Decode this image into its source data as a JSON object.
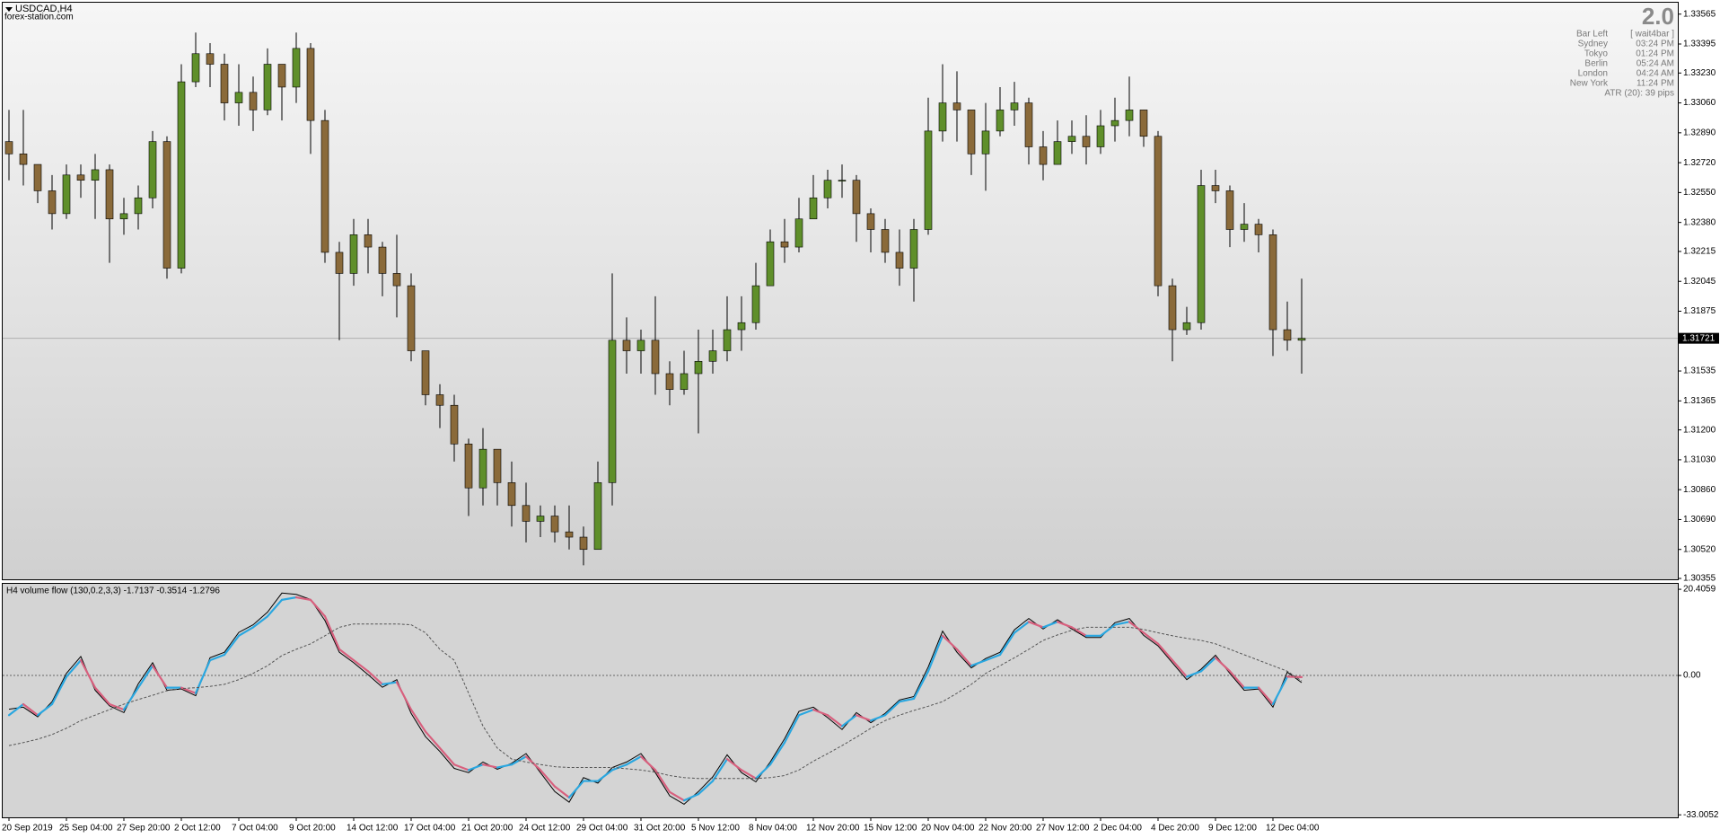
{
  "chart_data": [
    {
      "type": "candlestick",
      "title": "USDCAD,H4",
      "subtitle": "forex-station.com",
      "categories": [
        "20 Sep 2019",
        null,
        null,
        null,
        "25 Sep 04:00",
        null,
        null,
        null,
        "27 Sep 20:00",
        null,
        null,
        null,
        "2 Oct 12:00",
        null,
        null,
        null,
        "7 Oct 04:00",
        null,
        null,
        null,
        "9 Oct 20:00",
        null,
        null,
        null,
        "14 Oct 12:00",
        null,
        null,
        null,
        "17 Oct 04:00",
        null,
        null,
        null,
        "21 Oct 20:00",
        null,
        null,
        null,
        "24 Oct 12:00",
        null,
        null,
        null,
        "29 Oct 04:00",
        null,
        null,
        null,
        "31 Oct 20:00",
        null,
        null,
        null,
        "5 Nov 12:00",
        null,
        null,
        null,
        "8 Nov 04:00",
        null,
        null,
        null,
        "12 Nov 20:00",
        null,
        null,
        null,
        "15 Nov 12:00",
        null,
        null,
        null,
        "20 Nov 04:00",
        null,
        null,
        null,
        "22 Nov 20:00",
        null,
        null,
        null,
        "27 Nov 12:00",
        null,
        null,
        null,
        "2 Dec 04:00",
        null,
        null,
        null,
        "4 Dec 20:00",
        null,
        null,
        null,
        "9 Dec 12:00",
        null,
        null,
        null,
        "12 Dec 04:00",
        null,
        null
      ],
      "open": [
        1.3284,
        1.3277,
        1.3271,
        1.3256,
        1.3243,
        1.3265,
        1.3262,
        1.3268,
        1.324,
        1.3243,
        1.3252,
        1.3284,
        1.3212,
        1.3318,
        1.3334,
        1.3328,
        1.3306,
        1.3312,
        1.3302,
        1.3328,
        1.3315,
        1.3337,
        1.3296,
        1.3221,
        1.3209,
        1.3231,
        1.3224,
        1.3209,
        1.3202,
        1.3165,
        1.314,
        1.3134,
        1.3112,
        1.3087,
        1.3109,
        1.309,
        1.3077,
        1.3068,
        1.3071,
        1.3062,
        1.3059,
        1.3052,
        1.309,
        1.3171,
        1.3165,
        1.3171,
        1.3152,
        1.3143,
        1.3152,
        1.3159,
        1.3165,
        1.3177,
        1.3181,
        1.3202,
        1.3227,
        1.3224,
        1.324,
        1.3252,
        1.3262,
        1.3262,
        1.3243,
        1.3234,
        1.3221,
        1.3212,
        1.3234,
        1.329,
        1.3306,
        1.3302,
        1.3277,
        1.329,
        1.3302,
        1.3306,
        1.3281,
        1.3271,
        1.3284,
        1.3287,
        1.3281,
        1.3293,
        1.3296,
        1.3302,
        1.3287,
        1.3202,
        1.3177,
        1.3181,
        1.3259,
        1.3256,
        1.3234,
        1.3237,
        1.3231,
        1.3177,
        1.3171
      ],
      "high": [
        1.3302,
        1.3302,
        1.3271,
        1.3265,
        1.3271,
        1.3271,
        1.3277,
        1.3271,
        1.3252,
        1.3259,
        1.329,
        1.3287,
        1.3328,
        1.3346,
        1.334,
        1.3334,
        1.3328,
        1.3321,
        1.3337,
        1.3328,
        1.3346,
        1.334,
        1.3302,
        1.3227,
        1.324,
        1.324,
        1.3227,
        1.3231,
        1.3209,
        1.3165,
        1.3146,
        1.314,
        1.3115,
        1.3121,
        1.3109,
        1.3102,
        1.309,
        1.3077,
        1.3077,
        1.3077,
        1.3065,
        1.3102,
        1.3209,
        1.3184,
        1.3177,
        1.3196,
        1.3159,
        1.3165,
        1.3177,
        1.3177,
        1.3196,
        1.3196,
        1.3215,
        1.3234,
        1.324,
        1.3252,
        1.3265,
        1.3268,
        1.3271,
        1.3265,
        1.3246,
        1.324,
        1.3234,
        1.324,
        1.3309,
        1.3328,
        1.3324,
        1.3302,
        1.3306,
        1.3315,
        1.3318,
        1.3309,
        1.329,
        1.3296,
        1.3296,
        1.3299,
        1.3302,
        1.3309,
        1.3321,
        1.3302,
        1.329,
        1.3206,
        1.319,
        1.3268,
        1.3268,
        1.3259,
        1.3249,
        1.324,
        1.3234,
        1.3193,
        1.3206
      ],
      "low": [
        1.3262,
        1.3259,
        1.3249,
        1.3234,
        1.324,
        1.3252,
        1.324,
        1.3215,
        1.3231,
        1.3234,
        1.3246,
        1.3206,
        1.3209,
        1.3315,
        1.3315,
        1.3296,
        1.3293,
        1.329,
        1.3299,
        1.3296,
        1.3306,
        1.3277,
        1.3215,
        1.3171,
        1.3202,
        1.3209,
        1.3196,
        1.3184,
        1.3159,
        1.3134,
        1.3121,
        1.3102,
        1.3071,
        1.3077,
        1.3077,
        1.3065,
        1.3056,
        1.3059,
        1.3056,
        1.3052,
        1.3043,
        1.3052,
        1.3077,
        1.3152,
        1.3152,
        1.314,
        1.3134,
        1.314,
        1.3118,
        1.3152,
        1.3159,
        1.3165,
        1.3177,
        1.3202,
        1.3215,
        1.3221,
        1.324,
        1.3246,
        1.3252,
        1.3227,
        1.3221,
        1.3215,
        1.3202,
        1.3193,
        1.3231,
        1.3284,
        1.3284,
        1.3265,
        1.3256,
        1.3287,
        1.3293,
        1.3271,
        1.3262,
        1.3271,
        1.3277,
        1.3271,
        1.3277,
        1.3284,
        1.3287,
        1.3281,
        1.3196,
        1.3159,
        1.3174,
        1.3177,
        1.3249,
        1.3224,
        1.3227,
        1.3221,
        1.3162,
        1.3165,
        1.3152
      ],
      "close": [
        1.3277,
        1.3271,
        1.3256,
        1.3243,
        1.3265,
        1.3262,
        1.3268,
        1.324,
        1.3243,
        1.3252,
        1.3284,
        1.3212,
        1.3318,
        1.3334,
        1.3328,
        1.3306,
        1.3312,
        1.3302,
        1.3328,
        1.3315,
        1.3337,
        1.3296,
        1.3221,
        1.3209,
        1.3231,
        1.3224,
        1.3209,
        1.3202,
        1.3165,
        1.314,
        1.3134,
        1.3112,
        1.3087,
        1.3109,
        1.309,
        1.3077,
        1.3068,
        1.3071,
        1.3062,
        1.3059,
        1.3052,
        1.309,
        1.3171,
        1.3165,
        1.3171,
        1.3152,
        1.3143,
        1.3152,
        1.3159,
        1.3165,
        1.3177,
        1.3181,
        1.3202,
        1.3227,
        1.3224,
        1.324,
        1.3252,
        1.3262,
        1.3262,
        1.3243,
        1.3234,
        1.3221,
        1.3212,
        1.3234,
        1.329,
        1.3306,
        1.3302,
        1.3277,
        1.329,
        1.3302,
        1.3306,
        1.3281,
        1.3271,
        1.3284,
        1.3287,
        1.3281,
        1.3293,
        1.3296,
        1.3302,
        1.3287,
        1.3202,
        1.3177,
        1.3181,
        1.3259,
        1.3256,
        1.3234,
        1.3237,
        1.3231,
        1.3177,
        1.3171,
        1.31721
      ],
      "up_color": "#5f8f2a",
      "down_color": "#8a6a3a",
      "wick_color": "#000000",
      "last_price": 1.31721,
      "ylim": [
        1.3035,
        1.3363
      ],
      "yticks": [
        1.33565,
        1.33395,
        {
          "value": 1.3323,
          "label": "1.33230"
        },
        {
          "value": 1.3306,
          "label": "1.33060"
        },
        {
          "value": 1.3289,
          "label": "1.32890"
        },
        {
          "value": 1.3272,
          "label": "1.32720"
        },
        {
          "value": 1.3255,
          "label": "1.32550"
        },
        {
          "value": 1.3238,
          "label": "1.32380"
        },
        1.32215,
        1.32045,
        1.31875,
        1.31535,
        1.31365,
        {
          "value": 1.312,
          "label": "1.31200"
        },
        {
          "value": 1.3103,
          "label": "1.31030"
        },
        {
          "value": 1.3086,
          "label": "1.30860"
        },
        {
          "value": 1.3069,
          "label": "1.30690"
        },
        {
          "value": 1.3052,
          "label": "1.30520"
        },
        1.30355
      ],
      "grid": false
    },
    {
      "type": "line",
      "title": "H4 volume flow (130,0.2,3,3) -1.7137 -0.3514 -1.2796",
      "series": [
        {
          "color": "#000000",
          "values": [
            -8.0,
            -7.5,
            -9.8,
            -6.2,
            0.5,
            4.5,
            -3.5,
            -7.2,
            -8.8,
            -2.0,
            3.0,
            -3.5,
            -3.2,
            -4.8,
            4.2,
            5.5,
            10.2,
            12.0,
            15.0,
            19.5,
            19.2,
            18.0,
            13.0,
            5.5,
            3.0,
            0.2,
            -2.8,
            -1.0,
            -9.0,
            -14.5,
            -18.0,
            -22.0,
            -23.0,
            -20.5,
            -22.2,
            -20.8,
            -18.5,
            -23.0,
            -27.5,
            -30.0,
            -24.2,
            -25.5,
            -21.8,
            -20.5,
            -18.5,
            -23.0,
            -28.5,
            -30.5,
            -27.5,
            -24.0,
            -18.8,
            -23.0,
            -25.2,
            -20.5,
            -15.0,
            -8.5,
            -7.5,
            -10.0,
            -12.8,
            -8.8,
            -11.2,
            -9.0,
            -5.8,
            -5.0,
            2.0,
            10.5,
            5.5,
            1.8,
            4.0,
            5.5,
            10.8,
            13.5,
            11.0,
            13.2,
            11.0,
            9.0,
            9.0,
            12.5,
            13.5,
            9.5,
            7.0,
            3.0,
            -1.0,
            1.5,
            4.8,
            0.5,
            -3.5,
            -3.2,
            -7.5,
            0.8,
            -1.7
          ]
        },
        {
          "up_color": "#2aa7e0",
          "down_color": "#d8607e",
          "values": [
            -9.4,
            -6.8,
            -9.4,
            -6.8,
            -0.3,
            3.6,
            -2.9,
            -6.8,
            -8.1,
            -2.9,
            2.3,
            -2.9,
            -2.9,
            -4.2,
            3.6,
            4.9,
            9.4,
            11.4,
            14.0,
            17.9,
            18.5,
            17.9,
            14.0,
            6.2,
            3.6,
            1.0,
            -2.1,
            -1.6,
            -8.1,
            -13.3,
            -17.2,
            -21.1,
            -22.4,
            -21.1,
            -21.8,
            -21.1,
            -19.2,
            -22.4,
            -26.3,
            -28.9,
            -25.0,
            -25.0,
            -22.4,
            -21.1,
            -19.2,
            -22.4,
            -27.6,
            -29.6,
            -28.1,
            -25.0,
            -19.8,
            -22.4,
            -24.4,
            -21.1,
            -15.9,
            -9.4,
            -8.1,
            -9.4,
            -12.0,
            -9.4,
            -10.7,
            -9.4,
            -6.2,
            -5.5,
            1.0,
            9.4,
            6.2,
            2.3,
            3.6,
            4.9,
            10.1,
            12.7,
            11.4,
            12.7,
            11.4,
            9.4,
            9.4,
            12.0,
            12.7,
            10.1,
            7.5,
            3.6,
            -0.3,
            1.0,
            4.2,
            1.0,
            -2.9,
            -2.9,
            -6.8,
            -0.3,
            -0.4
          ]
        },
        {
          "color": "#555555",
          "dashed": true,
          "values": [
            -16.6,
            -15.9,
            -15.1,
            -14.0,
            -12.5,
            -10.7,
            -9.4,
            -8.1,
            -6.8,
            -5.7,
            -4.7,
            -3.6,
            -3.1,
            -2.9,
            -2.6,
            -2.1,
            -1.0,
            0.5,
            2.3,
            4.7,
            6.2,
            7.5,
            9.4,
            11.4,
            12.2,
            12.2,
            12.2,
            12.2,
            12.0,
            10.1,
            6.2,
            3.6,
            -4.2,
            -12.0,
            -17.2,
            -19.8,
            -20.5,
            -21.1,
            -21.6,
            -21.8,
            -21.8,
            -21.8,
            -21.8,
            -22.1,
            -22.4,
            -22.9,
            -23.7,
            -24.2,
            -24.4,
            -24.4,
            -24.4,
            -24.4,
            -24.4,
            -24.2,
            -23.7,
            -22.4,
            -20.3,
            -18.5,
            -16.6,
            -14.6,
            -12.5,
            -10.7,
            -9.4,
            -8.3,
            -7.3,
            -6.2,
            -4.2,
            -2.1,
            0.5,
            2.3,
            4.2,
            6.2,
            8.3,
            9.6,
            10.7,
            11.4,
            11.4,
            11.4,
            11.4,
            10.9,
            10.1,
            9.4,
            8.8,
            8.3,
            7.5,
            6.2,
            4.9,
            3.6,
            2.3,
            1.0,
            -1.3
          ]
        }
      ],
      "ylim": [
        -33.6,
        21.7
      ],
      "yticks": [
        20.4059,
        {
          "value": 0,
          "label": "0.00"
        },
        -33.0052
      ]
    }
  ],
  "info": {
    "big": "2.0",
    "rows": [
      [
        "Bar Left",
        "[ wait4bar ]"
      ],
      [
        "Sydney",
        "03:24 PM"
      ],
      [
        "Tokyo",
        "01:24 PM"
      ],
      [
        "Berlin",
        "05:24 AM"
      ],
      [
        "London",
        "04:24 AM"
      ],
      [
        "New York",
        "11:24 PM"
      ]
    ],
    "atr": "ATR (20): 39 pips"
  }
}
